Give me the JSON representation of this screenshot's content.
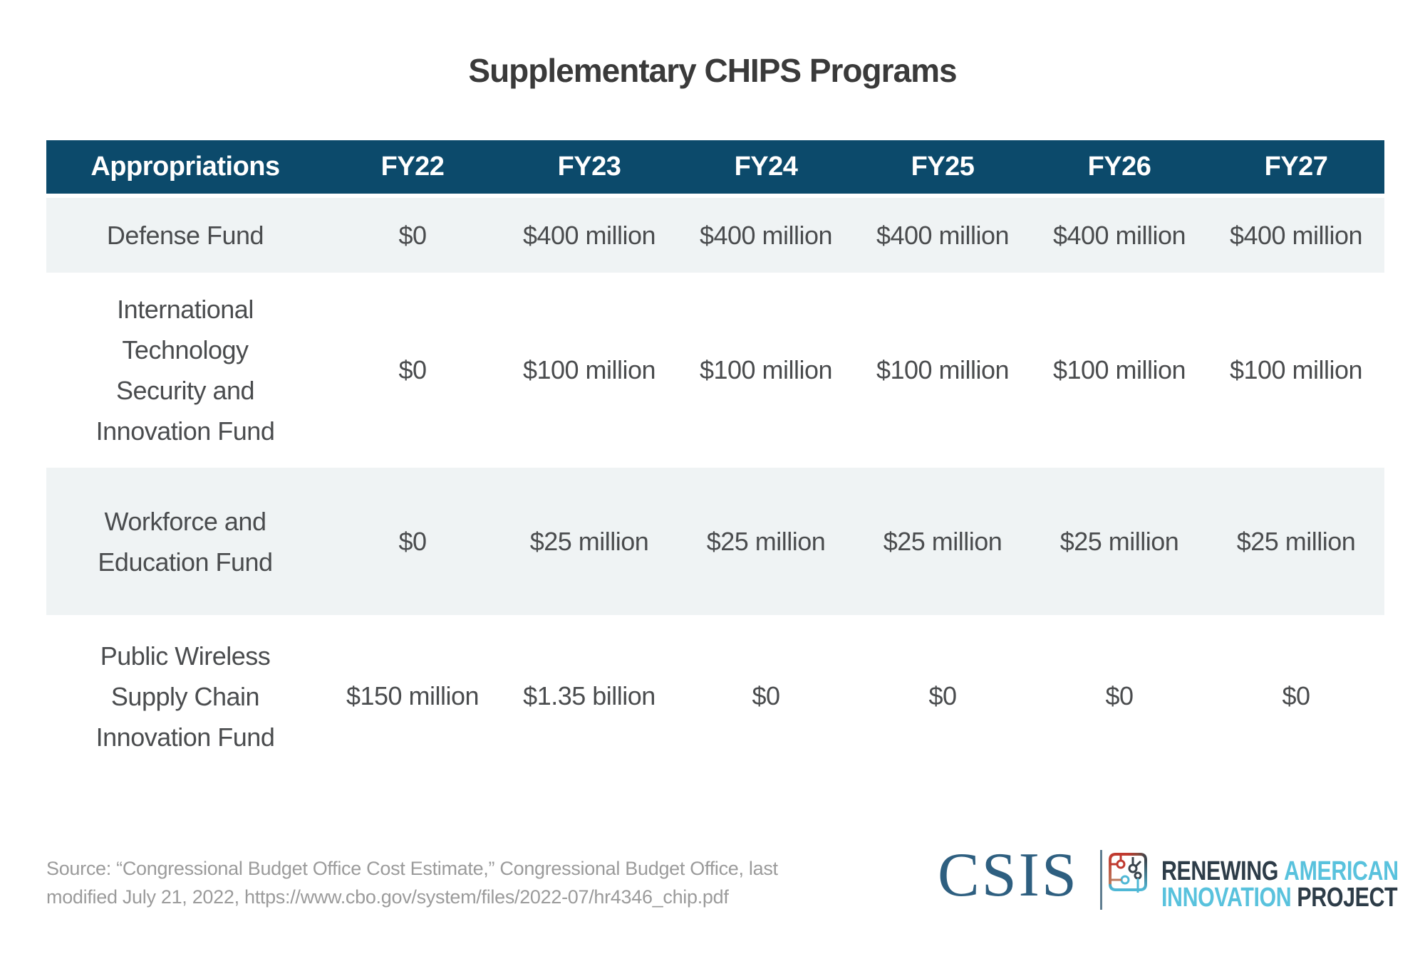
{
  "title": "Supplementary CHIPS Programs",
  "table": {
    "header": [
      "Appropriations",
      "FY22",
      "FY23",
      "FY24",
      "FY25",
      "FY26",
      "FY27"
    ],
    "rows": [
      {
        "name_lines": [
          "Defense Fund"
        ],
        "values": [
          "$0",
          "$400 million",
          "$400 million",
          "$400 million",
          "$400 million",
          "$400 million"
        ]
      },
      {
        "name_lines": [
          "International",
          "Technology",
          "Security and",
          "Innovation Fund"
        ],
        "values": [
          "$0",
          "$100 million",
          "$100 million",
          "$100 million",
          "$100 million",
          "$100 million"
        ]
      },
      {
        "name_lines": [
          "Workforce and",
          "Education Fund"
        ],
        "values": [
          "$0",
          "$25 million",
          "$25 million",
          "$25 million",
          "$25 million",
          "$25 million"
        ]
      },
      {
        "name_lines": [
          "Public Wireless",
          "Supply Chain",
          "Innovation Fund"
        ],
        "values": [
          "$150 million",
          "$1.35 billion",
          "$0",
          "$0",
          "$0",
          "$0"
        ]
      }
    ]
  },
  "source": {
    "text": "Source: “Congressional Budget Office Cost Estimate,” Congressional Budget Office, last\nmodified July 21, 2022, https://www.cbo.gov/system/files/2022-07/hr4346_chip.pdf"
  },
  "branding": {
    "csis_wordmark": "CSIS",
    "raip": {
      "line1_dark": "RENEWING",
      "line1_light": "AMERICAN",
      "line2_light": "INNOVATION",
      "line2_dark": "PROJECT"
    },
    "chip_icon": "circuit-chip-icon"
  },
  "colors": {
    "header_bg": "#0c4a6b",
    "header_text": "#ffffff",
    "row_shade": "#eff3f4",
    "body_text": "#4a4c4e",
    "title_text": "#3a3a3a",
    "source_text": "#9b9b9b",
    "csis_blue": "#2e5f80",
    "raip_light_blue": "#59c2dd",
    "raip_dark": "#2d3c48",
    "logo_red": "#c0392f"
  },
  "chart_data": {
    "type": "table",
    "title": "Supplementary CHIPS Programs",
    "columns": [
      "Appropriations",
      "FY22",
      "FY23",
      "FY24",
      "FY25",
      "FY26",
      "FY27"
    ],
    "rows": [
      [
        "Defense Fund",
        "$0",
        "$400 million",
        "$400 million",
        "$400 million",
        "$400 million",
        "$400 million"
      ],
      [
        "International Technology Security and Innovation Fund",
        "$0",
        "$100 million",
        "$100 million",
        "$100 million",
        "$100 million",
        "$100 million"
      ],
      [
        "Workforce and Education Fund",
        "$0",
        "$25 million",
        "$25 million",
        "$25 million",
        "$25 million",
        "$25 million"
      ],
      [
        "Public Wireless Supply Chain Innovation Fund",
        "$150 million",
        "$1.35 billion",
        "$0",
        "$0",
        "$0",
        "$0"
      ]
    ],
    "values_usd_millions": {
      "categories": [
        "FY22",
        "FY23",
        "FY24",
        "FY25",
        "FY26",
        "FY27"
      ],
      "series": [
        {
          "name": "Defense Fund",
          "values": [
            0,
            400,
            400,
            400,
            400,
            400
          ]
        },
        {
          "name": "International Technology Security and Innovation Fund",
          "values": [
            0,
            100,
            100,
            100,
            100,
            100
          ]
        },
        {
          "name": "Workforce and Education Fund",
          "values": [
            0,
            25,
            25,
            25,
            25,
            25
          ]
        },
        {
          "name": "Public Wireless Supply Chain Innovation Fund",
          "values": [
            150,
            1350,
            0,
            0,
            0,
            0
          ]
        }
      ]
    },
    "source": "Source: “Congressional Budget Office Cost Estimate,” Congressional Budget Office, last modified July 21, 2022, https://www.cbo.gov/system/files/2022-07/hr4346_chip.pdf"
  }
}
